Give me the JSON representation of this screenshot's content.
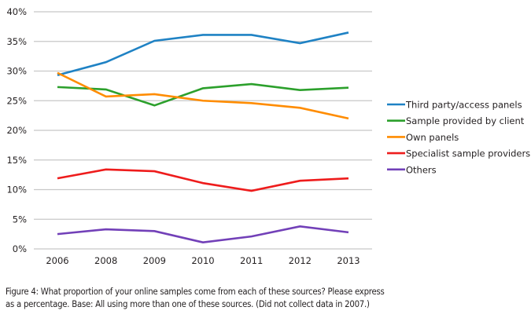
{
  "chart_data": {
    "type": "line",
    "title": "",
    "xlabel": "",
    "ylabel": "",
    "categories": [
      "2006",
      "2008",
      "2009",
      "2010",
      "2011",
      "2012",
      "2013"
    ],
    "ylim": [
      0,
      40
    ],
    "yticks": [
      0,
      5,
      10,
      15,
      20,
      25,
      30,
      35,
      40
    ],
    "ytick_labels": [
      "0%",
      "5%",
      "10%",
      "15%",
      "20%",
      "25%",
      "30%",
      "35%",
      "40%"
    ],
    "grid": true,
    "legend_position": "right",
    "series": [
      {
        "name": "Third party/access panels",
        "color": "#1f82c4",
        "values": [
          29.3,
          31.5,
          35.1,
          36.1,
          36.1,
          34.7,
          36.5
        ]
      },
      {
        "name": "Sample provided by client",
        "color": "#2ca02c",
        "values": [
          27.3,
          26.9,
          24.2,
          27.1,
          27.8,
          26.8,
          27.2
        ]
      },
      {
        "name": "Own panels",
        "color": "#ff8c00",
        "values": [
          29.7,
          25.7,
          26.1,
          25.0,
          24.6,
          23.8,
          22.0
        ]
      },
      {
        "name": "Specialist sample providers",
        "color": "#ee1c1c",
        "values": [
          11.9,
          13.4,
          13.1,
          11.1,
          9.8,
          11.5,
          11.9
        ]
      },
      {
        "name": "Others",
        "color": "#7240b8",
        "values": [
          2.5,
          3.3,
          3.0,
          1.1,
          2.1,
          3.8,
          2.8
        ]
      }
    ]
  },
  "caption": {
    "line1": "Figure 4: What proportion of your online samples come from each of these sources? Please express",
    "line2": "as a percentage. Base: All using more than one of these sources. (Did not collect data in 2007.)"
  }
}
